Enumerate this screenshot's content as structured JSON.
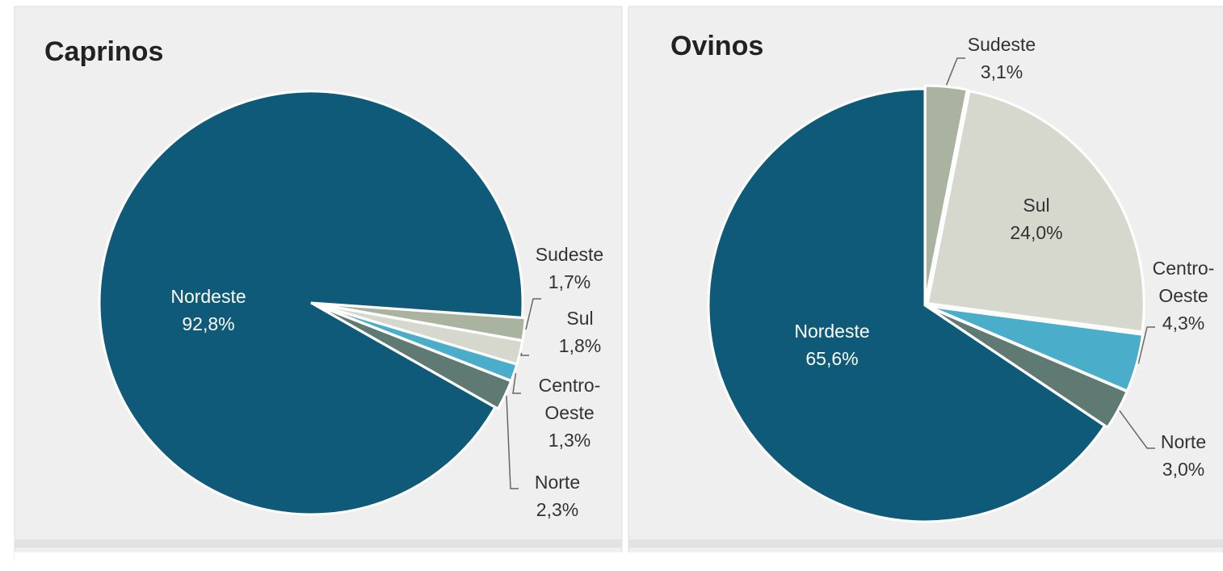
{
  "chart_data": [
    {
      "type": "pie",
      "title": "Caprinos",
      "categories": [
        "Sudeste",
        "Sul",
        "Centro-Oeste",
        "Norte",
        "Nordeste"
      ],
      "values": [
        1.7,
        1.8,
        1.3,
        2.3,
        92.8
      ],
      "value_labels": [
        "1,7%",
        "1,8%",
        "1,3%",
        "2,3%",
        "92,8%"
      ],
      "colors": [
        "#a9b3a0",
        "#d6d8ce",
        "#4aaecb",
        "#5f7a72",
        "#0e5a78"
      ]
    },
    {
      "type": "pie",
      "title": "Ovinos",
      "categories": [
        "Sudeste",
        "Sul",
        "Centro-Oeste",
        "Norte",
        "Nordeste"
      ],
      "values": [
        3.1,
        24.0,
        4.3,
        3.0,
        65.6
      ],
      "value_labels": [
        "3,1%",
        "24,0%",
        "4,3%",
        "3,0%",
        "65,6%"
      ],
      "colors": [
        "#a9b3a0",
        "#d6d8ce",
        "#4aaecb",
        "#5f7a72",
        "#0e5a78"
      ]
    }
  ]
}
